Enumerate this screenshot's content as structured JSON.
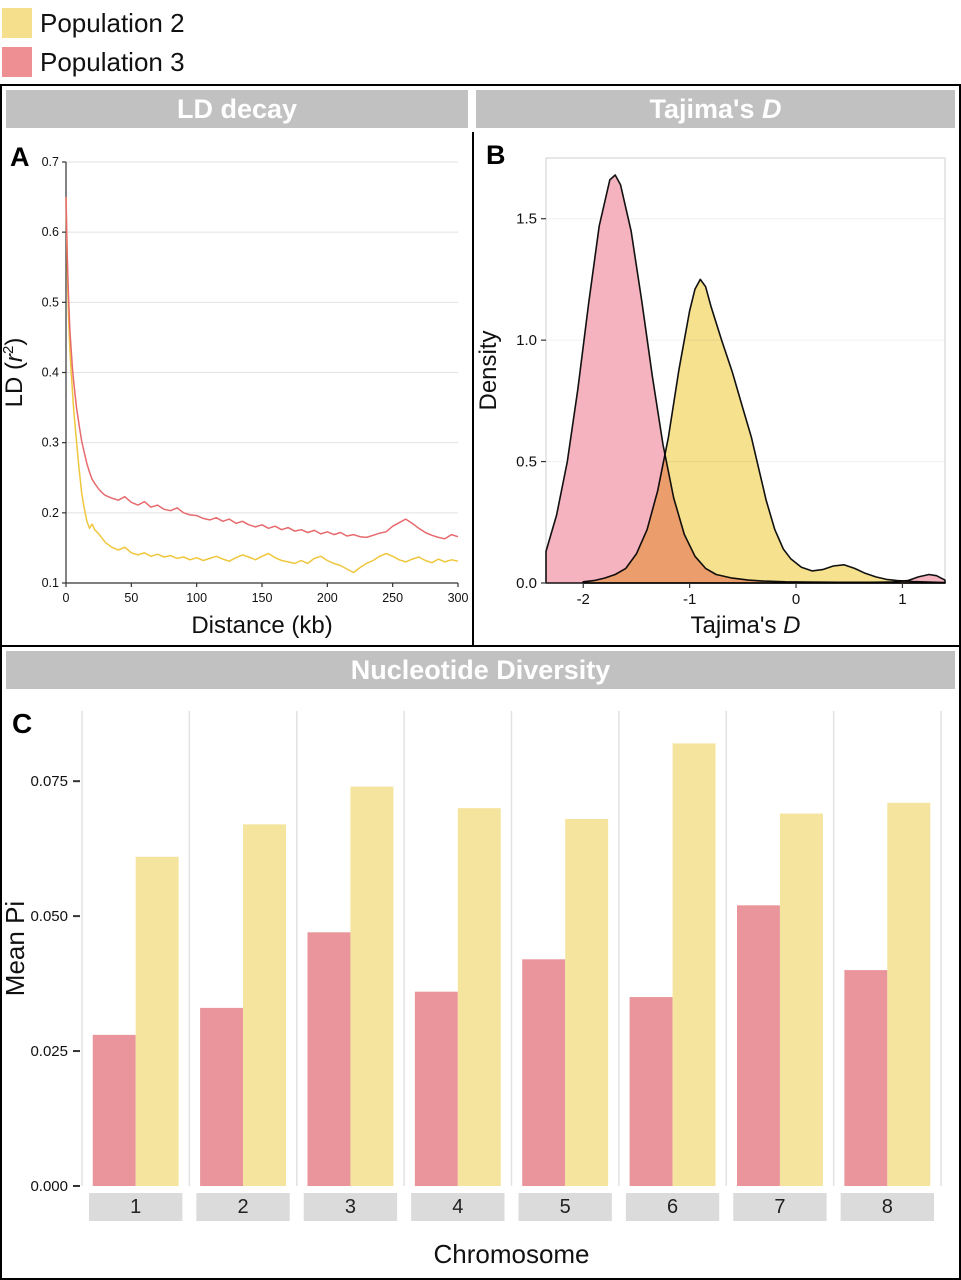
{
  "legend": {
    "items": [
      {
        "label": "Population 2",
        "color": "#F5DF8C"
      },
      {
        "label": "Population 3",
        "color": "#EE8F93"
      }
    ]
  },
  "headers": {
    "ld": "LD decay",
    "tajima_prefix": "Tajima's ",
    "tajima_italic": "D",
    "nucleotide": "Nucleotide Diversity"
  },
  "chart_data": [
    {
      "type": "line",
      "panel_label": "A",
      "title": "LD decay",
      "xlabel": "Distance (kb)",
      "ylabel_parts": {
        "prefix": "LD (",
        "var": "r",
        "sup": "2",
        "suffix": ")"
      },
      "xlim": [
        0,
        300
      ],
      "ylim": [
        0.1,
        0.7
      ],
      "xticks": [
        0,
        50,
        100,
        150,
        200,
        250,
        300
      ],
      "yticks": [
        0.1,
        0.2,
        0.3,
        0.4,
        0.5,
        0.6,
        0.7
      ],
      "grid": "horizontal",
      "series": [
        {
          "name": "Population 2",
          "color": "#EFC73E",
          "x": [
            0,
            1,
            2,
            3,
            4,
            5,
            6,
            8,
            10,
            12,
            14,
            16,
            18,
            20,
            22,
            25,
            28,
            30,
            35,
            40,
            45,
            50,
            55,
            60,
            65,
            70,
            75,
            80,
            85,
            90,
            95,
            100,
            105,
            110,
            115,
            120,
            125,
            130,
            135,
            140,
            145,
            150,
            155,
            160,
            165,
            170,
            175,
            180,
            185,
            190,
            195,
            200,
            205,
            210,
            215,
            220,
            225,
            230,
            235,
            240,
            245,
            250,
            255,
            260,
            265,
            270,
            275,
            280,
            285,
            290,
            295,
            300
          ],
          "y": [
            0.65,
            0.545,
            0.475,
            0.432,
            0.4,
            0.372,
            0.345,
            0.302,
            0.262,
            0.228,
            0.206,
            0.188,
            0.178,
            0.184,
            0.176,
            0.17,
            0.163,
            0.158,
            0.151,
            0.147,
            0.151,
            0.143,
            0.14,
            0.143,
            0.138,
            0.141,
            0.137,
            0.139,
            0.135,
            0.137,
            0.133,
            0.136,
            0.132,
            0.135,
            0.138,
            0.134,
            0.131,
            0.136,
            0.14,
            0.137,
            0.133,
            0.138,
            0.142,
            0.136,
            0.132,
            0.13,
            0.128,
            0.132,
            0.128,
            0.135,
            0.138,
            0.132,
            0.128,
            0.125,
            0.12,
            0.115,
            0.122,
            0.128,
            0.132,
            0.138,
            0.142,
            0.138,
            0.133,
            0.13,
            0.134,
            0.137,
            0.132,
            0.129,
            0.134,
            0.13,
            0.133,
            0.131
          ]
        },
        {
          "name": "Population 3",
          "color": "#E66A6E",
          "x": [
            0,
            1,
            2,
            3,
            4,
            5,
            6,
            8,
            10,
            12,
            14,
            16,
            18,
            20,
            22,
            25,
            28,
            30,
            35,
            40,
            45,
            50,
            55,
            60,
            65,
            70,
            75,
            80,
            85,
            90,
            95,
            100,
            105,
            110,
            115,
            120,
            125,
            130,
            135,
            140,
            145,
            150,
            155,
            160,
            165,
            170,
            175,
            180,
            185,
            190,
            195,
            200,
            205,
            210,
            215,
            220,
            225,
            230,
            235,
            240,
            245,
            250,
            255,
            260,
            265,
            270,
            275,
            280,
            285,
            290,
            295,
            300
          ],
          "y": [
            0.65,
            0.565,
            0.505,
            0.46,
            0.432,
            0.405,
            0.385,
            0.35,
            0.325,
            0.302,
            0.286,
            0.27,
            0.258,
            0.248,
            0.242,
            0.234,
            0.228,
            0.225,
            0.221,
            0.218,
            0.223,
            0.215,
            0.211,
            0.216,
            0.208,
            0.211,
            0.205,
            0.203,
            0.207,
            0.2,
            0.197,
            0.196,
            0.192,
            0.19,
            0.193,
            0.188,
            0.191,
            0.185,
            0.188,
            0.183,
            0.18,
            0.183,
            0.178,
            0.181,
            0.176,
            0.179,
            0.174,
            0.176,
            0.172,
            0.175,
            0.17,
            0.173,
            0.169,
            0.172,
            0.167,
            0.169,
            0.166,
            0.165,
            0.168,
            0.171,
            0.173,
            0.181,
            0.186,
            0.191,
            0.185,
            0.178,
            0.172,
            0.168,
            0.165,
            0.163,
            0.169,
            0.166
          ]
        }
      ]
    },
    {
      "type": "area",
      "panel_label": "B",
      "title": "Tajima's D",
      "xlabel_parts": {
        "prefix": "Tajima's ",
        "italic": "D"
      },
      "ylabel": "Density",
      "xlim": [
        -2.35,
        1.4
      ],
      "ylim": [
        0,
        1.75
      ],
      "xticks": [
        -2,
        -1,
        0,
        1
      ],
      "yticks": [
        0,
        0.5,
        1,
        1.5
      ],
      "grid": "horizontal-faint",
      "series": [
        {
          "name": "Population 3",
          "fill": "#F4B3BE",
          "stroke": "#111111",
          "x": [
            -2.35,
            -2.25,
            -2.15,
            -2.05,
            -1.95,
            -1.85,
            -1.75,
            -1.7,
            -1.65,
            -1.55,
            -1.45,
            -1.35,
            -1.25,
            -1.15,
            -1.05,
            -0.95,
            -0.85,
            -0.75,
            -0.6,
            -0.45,
            -0.3,
            -0.1,
            0.1,
            0.4,
            0.7,
            0.9,
            1.05,
            1.15,
            1.25,
            1.32,
            1.4
          ],
          "y": [
            0.13,
            0.28,
            0.5,
            0.8,
            1.15,
            1.47,
            1.66,
            1.68,
            1.64,
            1.45,
            1.16,
            0.85,
            0.57,
            0.35,
            0.2,
            0.11,
            0.06,
            0.035,
            0.02,
            0.012,
            0.008,
            0.005,
            0.004,
            0.003,
            0.003,
            0.004,
            0.01,
            0.025,
            0.035,
            0.03,
            0.012
          ]
        },
        {
          "name": "Population 2",
          "fill": "#F6E18F",
          "stroke": "#111111",
          "blend": "multiply",
          "x": [
            -2.0,
            -1.9,
            -1.8,
            -1.7,
            -1.6,
            -1.5,
            -1.4,
            -1.3,
            -1.2,
            -1.1,
            -1.0,
            -0.95,
            -0.9,
            -0.85,
            -0.8,
            -0.7,
            -0.6,
            -0.5,
            -0.42,
            -0.35,
            -0.28,
            -0.2,
            -0.12,
            -0.05,
            0.05,
            0.15,
            0.25,
            0.35,
            0.45,
            0.55,
            0.65,
            0.75,
            0.85,
            0.95,
            1.1,
            1.25,
            1.4
          ],
          "y": [
            0.005,
            0.01,
            0.02,
            0.035,
            0.06,
            0.12,
            0.22,
            0.38,
            0.6,
            0.88,
            1.12,
            1.21,
            1.25,
            1.22,
            1.14,
            1.0,
            0.87,
            0.72,
            0.6,
            0.47,
            0.34,
            0.22,
            0.14,
            0.1,
            0.065,
            0.05,
            0.055,
            0.07,
            0.075,
            0.06,
            0.04,
            0.025,
            0.015,
            0.01,
            0.006,
            0.004,
            0.002
          ]
        }
      ]
    },
    {
      "type": "bar",
      "panel_label": "C",
      "title": "Nucleotide Diversity",
      "xlabel": "Chromosome",
      "ylabel": "Mean Pi",
      "categories": [
        "1",
        "2",
        "3",
        "4",
        "5",
        "6",
        "7",
        "8"
      ],
      "ylim": [
        0,
        0.088
      ],
      "yticks": [
        0,
        0.025,
        0.05,
        0.075
      ],
      "ytick_labels": [
        "0.000",
        "0.025",
        "0.050",
        "0.075"
      ],
      "grid": "vertical",
      "series": [
        {
          "name": "Population 3",
          "color": "#E9959B",
          "values": [
            0.028,
            0.033,
            0.047,
            0.036,
            0.042,
            0.035,
            0.052,
            0.04
          ]
        },
        {
          "name": "Population 2",
          "color": "#F5E49E",
          "values": [
            0.061,
            0.067,
            0.074,
            0.07,
            0.068,
            0.082,
            0.069,
            0.071
          ]
        }
      ]
    }
  ]
}
